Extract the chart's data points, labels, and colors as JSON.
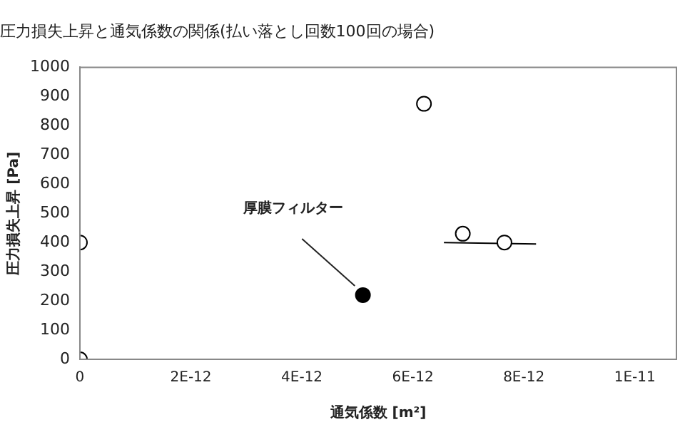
{
  "chart_data": {
    "type": "scatter",
    "title": "圧力損失上昇と通気係数の関係(払い落とし回数100回の場合)",
    "xlabel": "通気係数 [m²]",
    "ylabel": "圧力損失上昇 [Pa]",
    "series": [
      {
        "type": "scatter",
        "color": "#ffffff",
        "x": [
          0,
          0,
          6.2e-12,
          6.9e-12,
          7.65e-12
        ],
        "values": [
          0,
          400,
          875,
          430,
          400
        ]
      },
      {
        "type": "scatter",
        "color": "#000000",
        "x": [
          5.1e-12
        ],
        "values": [
          220
        ]
      },
      {
        "type": "line",
        "color": "#000000",
        "marker": "none",
        "x": [
          6.56e-12,
          8.22e-12
        ],
        "values": [
          400,
          395
        ]
      }
    ],
    "annotations": [
      "厚膜フィルター"
    ],
    "xlim": [
      0,
      1.075e-11
    ],
    "xticks": [
      0,
      {
        "value": 2e-12,
        "label": "2E-12"
      },
      {
        "value": 4e-12,
        "label": "4E-12"
      },
      {
        "value": 6e-12,
        "label": "6E-12"
      },
      {
        "value": 8e-12,
        "label": "8E-12"
      },
      {
        "value": 1e-11,
        "label": "1E-11"
      }
    ],
    "ylim": [
      0,
      1000
    ],
    "yticks": [
      0,
      100,
      200,
      300,
      400,
      500,
      600,
      700,
      800,
      900,
      1000
    ],
    "marker": "circle",
    "grid": false,
    "legend": false
  }
}
